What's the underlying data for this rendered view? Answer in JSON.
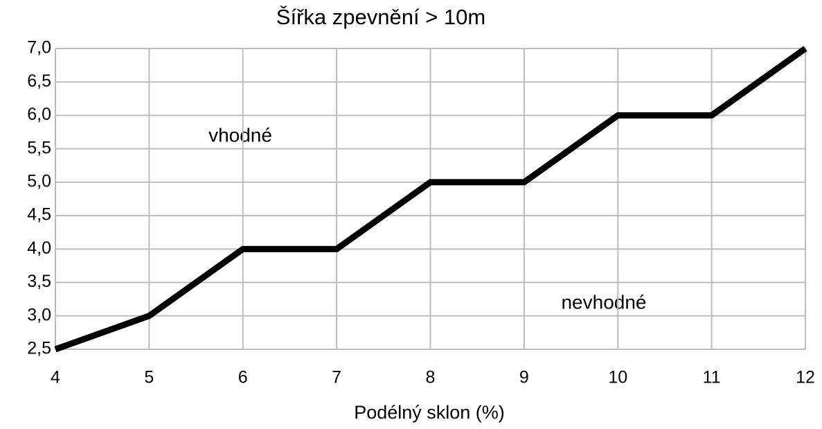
{
  "chart_data": {
    "type": "line",
    "title": "Šířka zpevnění > 10m",
    "x_label": "Podélný sklon (%)",
    "annotations": [
      "vhodné",
      "nevhodné"
    ],
    "x": [
      4,
      5,
      6,
      7,
      8,
      9,
      10,
      11,
      12
    ],
    "series": [
      {
        "color": "#000000",
        "values": [
          2.5,
          3,
          4,
          4,
          5,
          5,
          6,
          6,
          7
        ]
      }
    ],
    "xlim": [
      4,
      12
    ],
    "xticks": [
      4,
      5,
      6,
      7,
      8,
      9,
      10,
      11,
      12
    ],
    "ylim": [
      2.5,
      7
    ],
    "yticks": [
      {
        "value": 2.5,
        "label": "2,5"
      },
      {
        "value": 3,
        "label": "3,0"
      },
      {
        "value": 3.5,
        "label": "3,5"
      },
      {
        "value": 4,
        "label": "4,0"
      },
      {
        "value": 4.5,
        "label": "4,5"
      },
      {
        "value": 5,
        "label": "5,0"
      },
      {
        "value": 5.5,
        "label": "5,5"
      },
      {
        "value": 6,
        "label": "6,0"
      },
      {
        "value": 6.5,
        "label": "6,5"
      },
      {
        "value": 7,
        "label": "7,0"
      }
    ],
    "grid": true
  }
}
